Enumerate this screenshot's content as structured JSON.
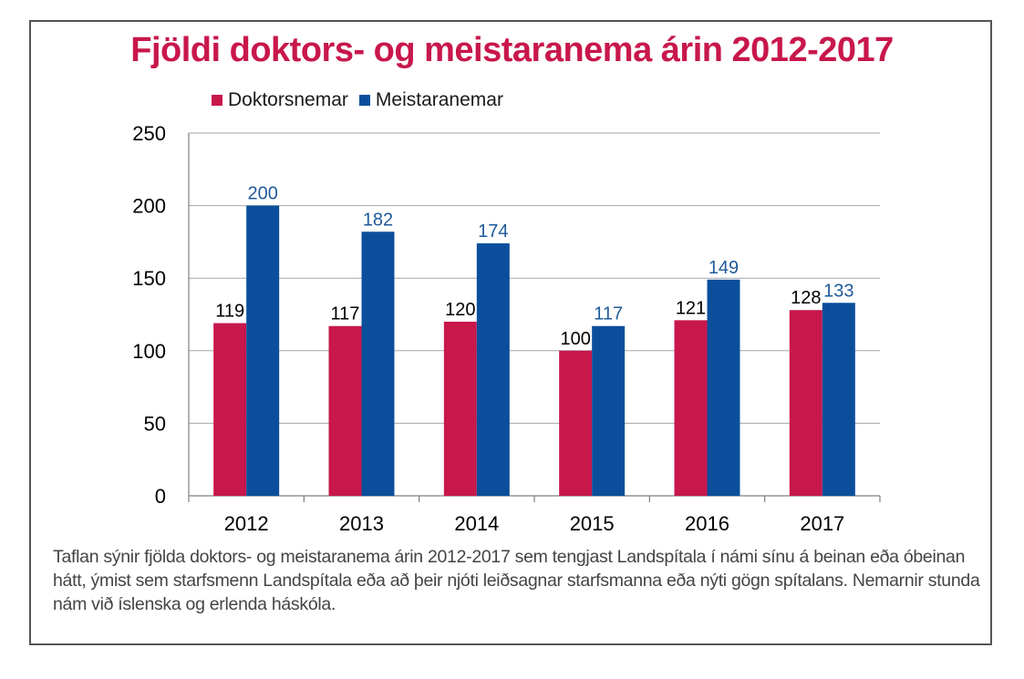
{
  "chart_data": {
    "type": "bar",
    "title": "Fjöldi doktors- og meistaranema árin 2012-2017",
    "categories": [
      "2012",
      "2013",
      "2014",
      "2015",
      "2016",
      "2017"
    ],
    "series": [
      {
        "name": "Doktorsnemar",
        "values": [
          119,
          117,
          120,
          100,
          121,
          128
        ],
        "color": "#c8174b",
        "label_color": "#000000"
      },
      {
        "name": "Meistaranemar",
        "values": [
          200,
          182,
          174,
          117,
          149,
          133
        ],
        "color": "#0b4f9c",
        "label_color": "#1f5a9a"
      }
    ],
    "ylim": [
      0,
      250
    ],
    "yticks": [
      0,
      50,
      100,
      150,
      200,
      250
    ],
    "grid": true,
    "legend_position": "top-left"
  },
  "colors": {
    "title": "#c8174b",
    "frame_border": "#555555",
    "gridline": "#a6a6a6"
  },
  "caption": "Taflan sýnir fjölda doktors- og meistaranema árin 2012-2017 sem tengjast Landspítala í námi sínu á beinan eða óbeinan hátt, ýmist sem starfsmenn Landspítala eða að þeir njóti leiðsagnar starfsmanna eða nýti gögn spítalans. Nemarnir stunda nám við íslenska og erlenda háskóla."
}
